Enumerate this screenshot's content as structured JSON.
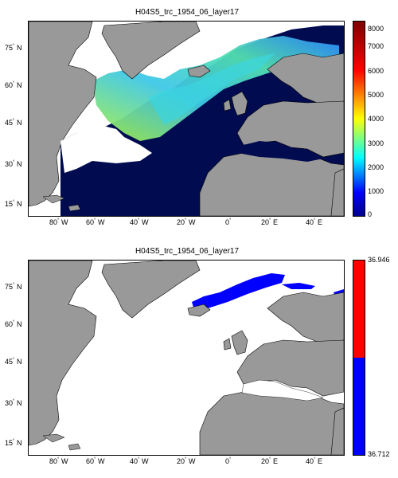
{
  "panels": [
    {
      "title": "H04S5_trc_1954_06_layer17",
      "y_ticks": [
        {
          "value": 75,
          "label": "75",
          "hemi": "N"
        },
        {
          "value": 60,
          "label": "60",
          "hemi": "N"
        },
        {
          "value": 45,
          "label": "45",
          "hemi": "N"
        },
        {
          "value": 30,
          "label": "30",
          "hemi": "N"
        },
        {
          "value": 15,
          "label": "15",
          "hemi": "N"
        }
      ],
      "x_ticks": [
        {
          "value": -80,
          "label": "80",
          "hemi": "W"
        },
        {
          "value": -60,
          "label": "60",
          "hemi": "W"
        },
        {
          "value": -40,
          "label": "40",
          "hemi": "W"
        },
        {
          "value": -20,
          "label": "20",
          "hemi": "W"
        },
        {
          "value": 0,
          "label": "0",
          "hemi": ""
        },
        {
          "value": 20,
          "label": "20",
          "hemi": "E"
        },
        {
          "value": 40,
          "label": "40",
          "hemi": "E"
        }
      ],
      "colorbar": {
        "min": 0,
        "max": 8000,
        "ticks": [
          "8000",
          "7000",
          "6000",
          "5000",
          "4000",
          "3000",
          "2000",
          "1000",
          "0"
        ],
        "colors": [
          "#00008f",
          "#0000ff",
          "#00ffff",
          "#ffff00",
          "#ff0000",
          "#800000"
        ]
      }
    },
    {
      "title": "H04S5_trc_1954_06_layer17",
      "y_ticks": [
        {
          "value": 75,
          "label": "75",
          "hemi": "N"
        },
        {
          "value": 60,
          "label": "60",
          "hemi": "N"
        },
        {
          "value": 45,
          "label": "45",
          "hemi": "N"
        },
        {
          "value": 30,
          "label": "30",
          "hemi": "N"
        },
        {
          "value": 15,
          "label": "15",
          "hemi": "N"
        }
      ],
      "x_ticks": [
        {
          "value": -80,
          "label": "80",
          "hemi": "W"
        },
        {
          "value": -60,
          "label": "60",
          "hemi": "W"
        },
        {
          "value": -40,
          "label": "40",
          "hemi": "W"
        },
        {
          "value": -20,
          "label": "20",
          "hemi": "W"
        },
        {
          "value": 0,
          "label": "0",
          "hemi": ""
        },
        {
          "value": 20,
          "label": "20",
          "hemi": "E"
        },
        {
          "value": 40,
          "label": "40",
          "hemi": "E"
        }
      ],
      "colorbar": {
        "max_label": "36.946",
        "min_label": "36.712",
        "upper_color": "#ff0000",
        "lower_color": "#0000ff"
      }
    }
  ],
  "colors": {
    "land": "#999999",
    "ocean_deep": "#000b50",
    "ocean_empty": "#ffffff"
  }
}
